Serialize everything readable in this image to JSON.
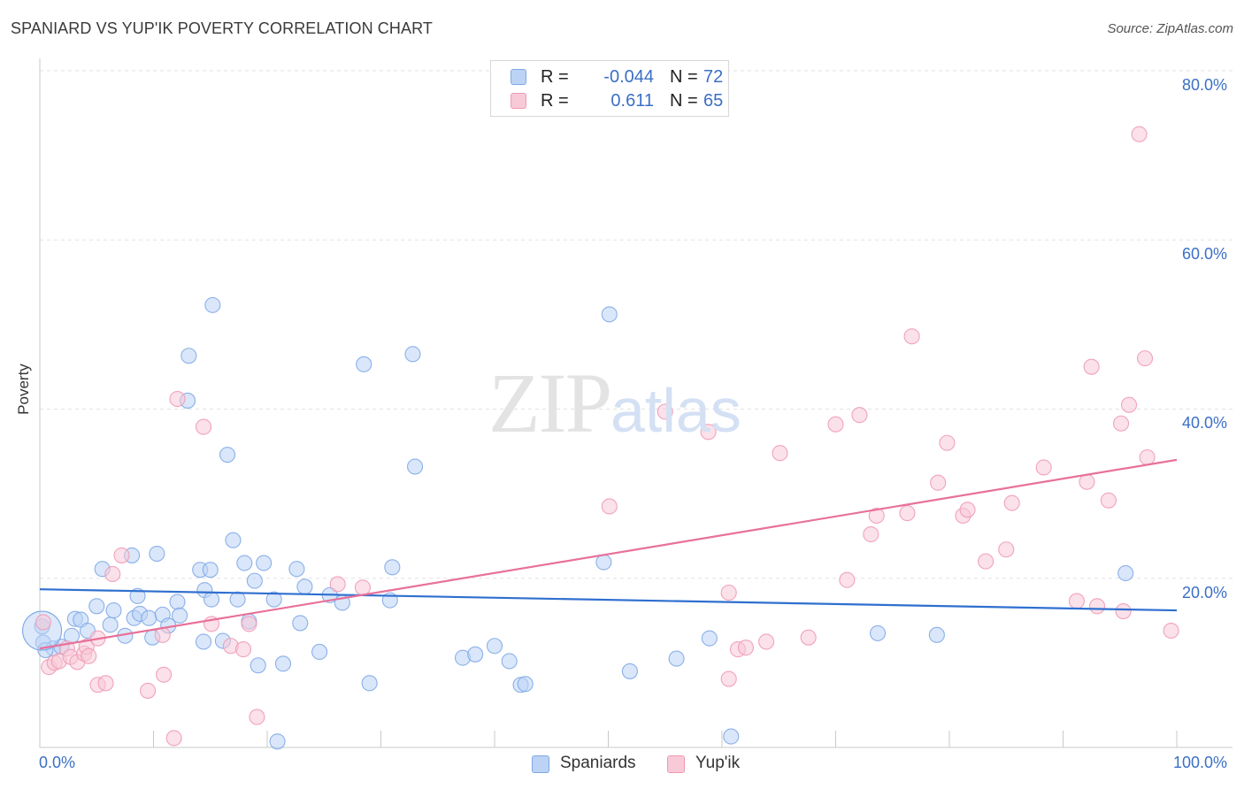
{
  "title": "SPANIARD VS YUP'IK POVERTY CORRELATION CHART",
  "source": "Source: ZipAtlas.com",
  "colors": {
    "spaniards": "#7fa8e6",
    "spaniards_fill": "#bcd3f5",
    "yupik": "#f09ab5",
    "yupik_fill": "#f8c9d7",
    "blue_line": "#2f6fd0",
    "pink_line": "#e8709a",
    "axis_text": "#3b6fc6"
  },
  "legend": {
    "row1": {
      "r_label": "R =",
      "r_value": "-0.044",
      "n_label": "N =",
      "n_value": "72"
    },
    "row2": {
      "r_label": "R =",
      "r_value": "0.611",
      "n_label": "N =",
      "n_value": "65"
    }
  },
  "bottom_legend": {
    "spaniards": "Spaniards",
    "yupik": "Yup'ik"
  },
  "watermark": {
    "zip": "ZIP",
    "atlas": "atlas"
  },
  "chart_data": {
    "type": "scatter",
    "title": "SPANIARD VS YUP'IK POVERTY CORRELATION CHART",
    "xlabel": "",
    "ylabel": "Poverty",
    "xlim": [
      0,
      100
    ],
    "ylim": [
      0,
      80
    ],
    "x_tick_labels": {
      "min": "0.0%",
      "max": "100.0%"
    },
    "y_tick_labels": [
      "20.0%",
      "40.0%",
      "60.0%",
      "80.0%"
    ],
    "y_ticks": [
      20,
      40,
      60,
      80
    ],
    "grid": true,
    "series": [
      {
        "name": "Spaniards",
        "r": -0.044,
        "n": 72,
        "trend": {
          "x": [
            0,
            100
          ],
          "y": [
            18.7,
            16.2
          ]
        },
        "points": [
          [
            0.2,
            14.3
          ],
          [
            0.3,
            12.4
          ],
          [
            1.2,
            11.7
          ],
          [
            1.9,
            11.9
          ],
          [
            2.8,
            13.2
          ],
          [
            3.1,
            15.2
          ],
          [
            3.6,
            15.1
          ],
          [
            4.2,
            13.8
          ],
          [
            5.0,
            16.7
          ],
          [
            5.5,
            21.1
          ],
          [
            6.2,
            14.5
          ],
          [
            6.5,
            16.2
          ],
          [
            7.5,
            13.2
          ],
          [
            8.1,
            22.7
          ],
          [
            8.3,
            15.3
          ],
          [
            8.6,
            17.9
          ],
          [
            8.8,
            15.8
          ],
          [
            9.6,
            15.3
          ],
          [
            9.9,
            13.0
          ],
          [
            10.3,
            22.9
          ],
          [
            10.8,
            15.7
          ],
          [
            11.3,
            14.4
          ],
          [
            12.1,
            17.2
          ],
          [
            12.3,
            15.6
          ],
          [
            13.1,
            46.3
          ],
          [
            13.0,
            41.0
          ],
          [
            14.1,
            21.0
          ],
          [
            14.4,
            12.5
          ],
          [
            14.5,
            18.6
          ],
          [
            15.0,
            21.0
          ],
          [
            15.1,
            17.5
          ],
          [
            16.1,
            12.6
          ],
          [
            16.5,
            34.6
          ],
          [
            17.0,
            24.5
          ],
          [
            17.4,
            17.5
          ],
          [
            18.0,
            21.8
          ],
          [
            18.4,
            14.9
          ],
          [
            18.9,
            19.7
          ],
          [
            19.2,
            9.7
          ],
          [
            19.7,
            21.8
          ],
          [
            20.6,
            17.5
          ],
          [
            20.9,
            0.7
          ],
          [
            21.4,
            9.9
          ],
          [
            22.6,
            21.1
          ],
          [
            22.9,
            14.7
          ],
          [
            23.3,
            19.0
          ],
          [
            24.6,
            11.3
          ],
          [
            25.5,
            18.0
          ],
          [
            26.6,
            17.1
          ],
          [
            28.5,
            45.3
          ],
          [
            29.0,
            7.6
          ],
          [
            30.8,
            17.4
          ],
          [
            31.0,
            21.3
          ],
          [
            32.8,
            46.5
          ],
          [
            33.0,
            33.2
          ],
          [
            37.2,
            10.6
          ],
          [
            38.3,
            11.0
          ],
          [
            40.0,
            12.0
          ],
          [
            41.3,
            10.2
          ],
          [
            42.3,
            7.4
          ],
          [
            42.7,
            7.5
          ],
          [
            49.6,
            21.9
          ],
          [
            50.1,
            51.2
          ],
          [
            51.9,
            9.0
          ],
          [
            56.0,
            10.5
          ],
          [
            58.9,
            12.9
          ],
          [
            60.8,
            1.3
          ],
          [
            73.7,
            13.5
          ],
          [
            78.9,
            13.3
          ],
          [
            95.5,
            20.6
          ],
          [
            15.2,
            52.3
          ],
          [
            0.5,
            11.5
          ]
        ]
      },
      {
        "name": "Yup'ik",
        "r": 0.611,
        "n": 65,
        "trend": {
          "x": [
            0,
            100
          ],
          "y": [
            11.7,
            34.0
          ]
        },
        "points": [
          [
            0.3,
            14.8
          ],
          [
            0.8,
            9.5
          ],
          [
            1.3,
            10.0
          ],
          [
            1.7,
            10.2
          ],
          [
            2.4,
            11.7
          ],
          [
            2.7,
            10.7
          ],
          [
            3.3,
            10.1
          ],
          [
            3.9,
            11.1
          ],
          [
            4.1,
            11.9
          ],
          [
            4.3,
            10.8
          ],
          [
            5.1,
            12.9
          ],
          [
            5.1,
            7.4
          ],
          [
            5.8,
            7.6
          ],
          [
            6.4,
            20.5
          ],
          [
            7.2,
            22.7
          ],
          [
            9.5,
            6.7
          ],
          [
            10.8,
            13.3
          ],
          [
            10.9,
            8.6
          ],
          [
            11.8,
            1.1
          ],
          [
            12.1,
            41.2
          ],
          [
            14.4,
            37.9
          ],
          [
            15.1,
            14.6
          ],
          [
            16.8,
            12.0
          ],
          [
            17.9,
            11.6
          ],
          [
            18.4,
            14.6
          ],
          [
            19.1,
            3.6
          ],
          [
            26.2,
            19.3
          ],
          [
            28.4,
            18.9
          ],
          [
            50.1,
            28.5
          ],
          [
            55.0,
            39.7
          ],
          [
            58.8,
            37.3
          ],
          [
            60.6,
            18.3
          ],
          [
            60.6,
            8.1
          ],
          [
            61.4,
            11.6
          ],
          [
            62.1,
            11.8
          ],
          [
            63.9,
            12.5
          ],
          [
            65.1,
            34.8
          ],
          [
            67.6,
            13.0
          ],
          [
            70.0,
            38.2
          ],
          [
            71.0,
            19.8
          ],
          [
            72.1,
            39.3
          ],
          [
            73.1,
            25.2
          ],
          [
            73.6,
            27.4
          ],
          [
            76.3,
            27.7
          ],
          [
            76.7,
            48.6
          ],
          [
            79.0,
            31.3
          ],
          [
            79.8,
            36.0
          ],
          [
            81.2,
            27.4
          ],
          [
            81.6,
            28.1
          ],
          [
            83.2,
            22.0
          ],
          [
            85.0,
            23.4
          ],
          [
            85.5,
            28.9
          ],
          [
            88.3,
            33.1
          ],
          [
            91.2,
            17.3
          ],
          [
            92.1,
            31.4
          ],
          [
            92.5,
            45.0
          ],
          [
            93.0,
            16.7
          ],
          [
            94.0,
            29.2
          ],
          [
            95.1,
            38.3
          ],
          [
            95.3,
            16.1
          ],
          [
            95.8,
            40.5
          ],
          [
            96.7,
            72.5
          ],
          [
            97.2,
            46.0
          ],
          [
            97.4,
            34.3
          ],
          [
            99.5,
            13.8
          ]
        ]
      }
    ]
  }
}
